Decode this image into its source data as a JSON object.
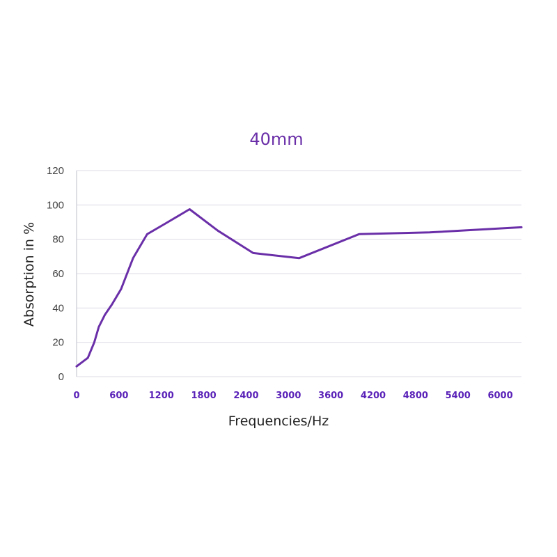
{
  "chart_data": {
    "type": "line",
    "title": "40mm",
    "xlabel": "Frequencies/Hz",
    "ylabel": "Absorption in %",
    "xlim": [
      0,
      6300
    ],
    "ylim": [
      0,
      120
    ],
    "x_ticks": [
      0,
      600,
      1200,
      1800,
      2400,
      3000,
      3600,
      4200,
      4800,
      5400,
      6000
    ],
    "x_tick_labels": [
      "0",
      "600",
      "1200",
      "1800",
      "2400",
      "3000",
      "3600",
      "4200",
      "4800",
      "5400",
      "6000"
    ],
    "y_ticks": [
      0,
      20,
      40,
      60,
      80,
      100,
      120
    ],
    "y_tick_labels": [
      "0",
      "20",
      "40",
      "60",
      "80",
      "100",
      "120"
    ],
    "grid": "horizontal",
    "series": [
      {
        "color": "#6a2fa8",
        "x": [
          0,
          160,
          250,
          315,
          400,
          500,
          630,
          800,
          1000,
          1250,
          1600,
          2000,
          2500,
          3150,
          4000,
          5000,
          6300
        ],
        "y": [
          6,
          11,
          20,
          29,
          36,
          42,
          51,
          69,
          83,
          89,
          97.5,
          85,
          72,
          69,
          83,
          84,
          87
        ]
      }
    ]
  }
}
